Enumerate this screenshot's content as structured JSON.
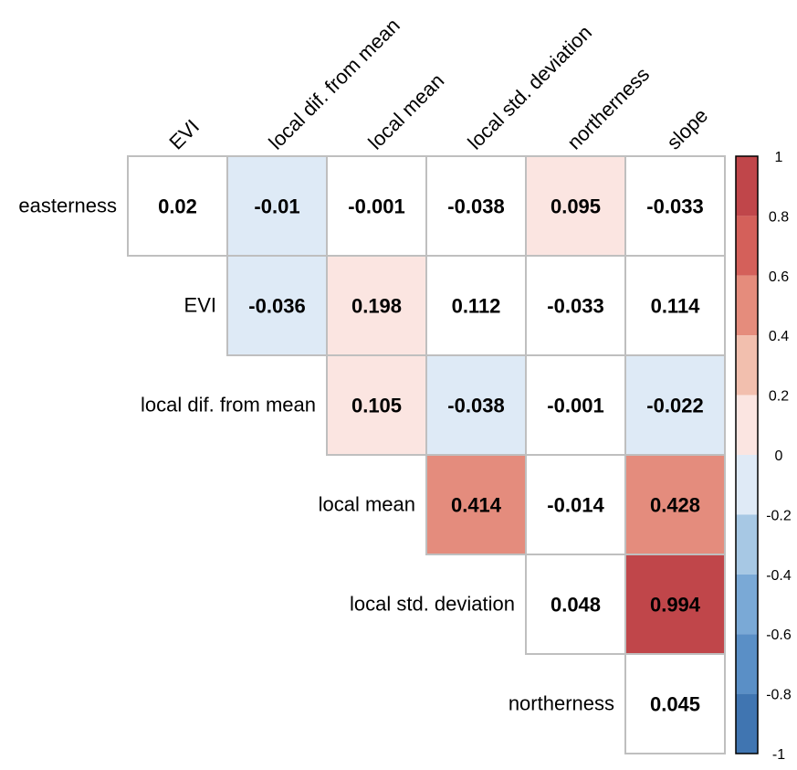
{
  "chart_data": {
    "type": "heatmap",
    "title": "",
    "columns": [
      "EVI",
      "local dif. from mean",
      "local mean",
      "local std. deviation",
      "northerness",
      "slope"
    ],
    "rows": [
      "easterness",
      "EVI",
      "local dif. from mean",
      "local mean",
      "local std. deviation",
      "northerness"
    ],
    "values": [
      [
        0.02,
        -0.01,
        -0.001,
        -0.038,
        0.095,
        -0.033
      ],
      [
        null,
        -0.036,
        0.198,
        0.112,
        -0.033,
        0.114
      ],
      [
        null,
        null,
        0.105,
        -0.038,
        -0.001,
        -0.022
      ],
      [
        null,
        null,
        null,
        0.414,
        -0.014,
        0.428
      ],
      [
        null,
        null,
        null,
        null,
        0.048,
        0.994
      ],
      [
        null,
        null,
        null,
        null,
        null,
        0.045
      ]
    ],
    "labels": [
      [
        "0.02",
        "-0.01",
        "-0.001",
        "-0.038",
        "0.095",
        "-0.033"
      ],
      [
        null,
        "-0.036",
        "0.198",
        "0.112",
        "-0.033",
        "0.114"
      ],
      [
        null,
        null,
        "0.105",
        "-0.038",
        "-0.001",
        "-0.022"
      ],
      [
        null,
        null,
        null,
        "0.414",
        "-0.014",
        "0.428"
      ],
      [
        null,
        null,
        null,
        null,
        "0.048",
        "0.994"
      ],
      [
        null,
        null,
        null,
        null,
        null,
        "0.045"
      ]
    ],
    "colorbar": {
      "range": [
        -1,
        1
      ],
      "ticks": [
        "1",
        "0.8",
        "0.6",
        "0.4",
        "0.2",
        "0",
        "-0.2",
        "-0.4",
        "-0.6",
        "-0.8",
        "-1"
      ],
      "bins": [
        {
          "min": 0.8,
          "max": 1.0,
          "color": "#c0464a"
        },
        {
          "min": 0.6,
          "max": 0.8,
          "color": "#d4605a"
        },
        {
          "min": 0.4,
          "max": 0.6,
          "color": "#e58c7c"
        },
        {
          "min": 0.2,
          "max": 0.4,
          "color": "#f2bfae"
        },
        {
          "min": 0.0,
          "max": 0.2,
          "color": "#fbe5e1"
        },
        {
          "min": -0.2,
          "max": 0.0,
          "color": "#dfeaf6"
        },
        {
          "min": -0.4,
          "max": -0.2,
          "color": "#a7c8e4"
        },
        {
          "min": -0.6,
          "max": -0.4,
          "color": "#7aa9d6"
        },
        {
          "min": -0.8,
          "max": -0.6,
          "color": "#5a8fc6"
        },
        {
          "min": -1.0,
          "max": -0.8,
          "color": "#4075b1"
        }
      ]
    },
    "cell_colors": [
      [
        "#ffffff",
        "#deeaf6",
        "#ffffff",
        "#ffffff",
        "#fbe5e1",
        "#ffffff"
      ],
      [
        null,
        "#deeaf6",
        "#fbe5e1",
        "#ffffff",
        "#ffffff",
        "#ffffff"
      ],
      [
        null,
        null,
        "#fbe5e1",
        "#deeaf6",
        "#ffffff",
        "#deeaf6"
      ],
      [
        null,
        null,
        null,
        "#e48c7d",
        "#ffffff",
        "#e48c7d"
      ],
      [
        null,
        null,
        null,
        null,
        "#ffffff",
        "#c0464a"
      ],
      [
        null,
        null,
        null,
        null,
        null,
        "#ffffff"
      ]
    ],
    "grid_color": "#bfbfbf"
  }
}
